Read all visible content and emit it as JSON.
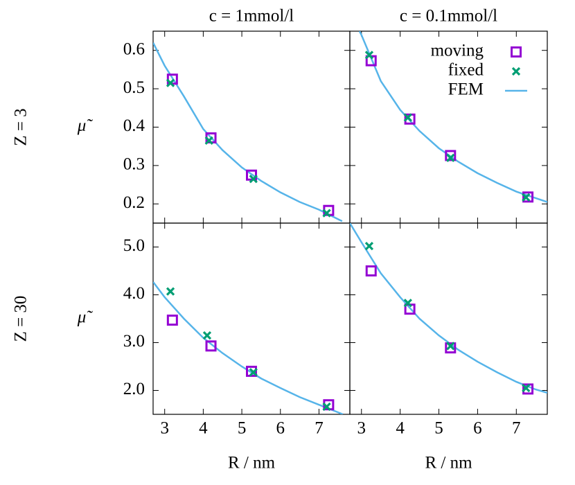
{
  "chart_data": [
    {
      "type": "scatter",
      "title": "c = 1mmol/l",
      "row_label": "Z = 3",
      "ylabel": "μ̃",
      "xlim": [
        2.7,
        7.8
      ],
      "ylim": [
        0.15,
        0.65
      ],
      "yticks": [
        0.2,
        0.3,
        0.4,
        0.5,
        0.6
      ],
      "series": [
        {
          "marker": "square",
          "color": "#9400d3",
          "x": [
            3.2,
            4.2,
            5.25,
            7.25
          ],
          "values": [
            0.525,
            0.372,
            0.275,
            0.183
          ]
        },
        {
          "marker": "cross",
          "color": "#009e73",
          "x": [
            3.15,
            4.15,
            5.3,
            7.2
          ],
          "values": [
            0.515,
            0.365,
            0.265,
            0.176
          ]
        },
        {
          "marker": "line",
          "color": "#56b4e9",
          "x": [
            2.7,
            3,
            3.5,
            4,
            4.5,
            5,
            5.5,
            6,
            6.5,
            7,
            7.5,
            7.6
          ],
          "values": [
            0.62,
            0.56,
            0.48,
            0.395,
            0.34,
            0.295,
            0.26,
            0.23,
            0.205,
            0.185,
            0.16,
            0.155
          ]
        }
      ]
    },
    {
      "type": "scatter",
      "title": "c = 0.1mmol/l",
      "legend": "upper right",
      "xlim": [
        2.7,
        7.8
      ],
      "ylim": [
        0.15,
        0.65
      ],
      "series": [
        {
          "name": "moving",
          "marker": "square",
          "color": "#9400d3",
          "x": [
            3.25,
            4.25,
            5.3,
            7.3
          ],
          "values": [
            0.573,
            0.421,
            0.326,
            0.218
          ]
        },
        {
          "name": "fixed",
          "marker": "cross",
          "color": "#009e73",
          "x": [
            3.2,
            4.2,
            5.3,
            7.25
          ],
          "values": [
            0.588,
            0.425,
            0.32,
            0.217
          ]
        },
        {
          "name": "FEM",
          "marker": "line",
          "color": "#56b4e9",
          "x": [
            2.95,
            3,
            3.5,
            4,
            4.5,
            5,
            5.5,
            6,
            6.5,
            7,
            7.5,
            7.8
          ],
          "values": [
            0.65,
            0.64,
            0.52,
            0.445,
            0.39,
            0.345,
            0.31,
            0.28,
            0.255,
            0.232,
            0.215,
            0.205
          ]
        }
      ]
    },
    {
      "type": "scatter",
      "row_label": "Z = 30",
      "ylabel": "μ̃",
      "xlabel": "R / nm",
      "xlim": [
        2.7,
        7.8
      ],
      "ylim": [
        1.5,
        5.5
      ],
      "xticks": [
        3,
        4,
        5,
        6,
        7
      ],
      "yticks": [
        {
          "value": 2,
          "label": "2.0"
        },
        {
          "value": 3,
          "label": "3.0"
        },
        {
          "value": 4,
          "label": "4.0"
        },
        {
          "value": 5,
          "label": "5.0"
        }
      ],
      "series": [
        {
          "marker": "square",
          "color": "#9400d3",
          "x": [
            3.2,
            4.2,
            5.25,
            7.25
          ],
          "values": [
            3.47,
            2.93,
            2.4,
            1.7
          ]
        },
        {
          "marker": "cross",
          "color": "#009e73",
          "x": [
            3.15,
            4.1,
            5.3,
            7.2
          ],
          "values": [
            4.07,
            3.15,
            2.38,
            1.66
          ]
        },
        {
          "marker": "line",
          "color": "#56b4e9",
          "x": [
            2.7,
            3,
            3.5,
            4,
            4.5,
            5,
            5.5,
            6,
            6.5,
            7,
            7.5,
            7.62
          ],
          "values": [
            4.27,
            3.95,
            3.5,
            3.1,
            2.78,
            2.5,
            2.25,
            2.05,
            1.86,
            1.7,
            1.54,
            1.5
          ]
        }
      ]
    },
    {
      "type": "scatter",
      "xlabel": "R / nm",
      "xlim": [
        2.7,
        7.8
      ],
      "ylim": [
        1.5,
        5.5
      ],
      "xticks": [
        3,
        4,
        5,
        6,
        7
      ],
      "series": [
        {
          "marker": "square",
          "color": "#9400d3",
          "x": [
            3.25,
            4.25,
            5.3,
            7.3
          ],
          "values": [
            4.5,
            3.7,
            2.89,
            2.03
          ]
        },
        {
          "marker": "cross",
          "color": "#009e73",
          "x": [
            3.2,
            4.2,
            5.3,
            7.25
          ],
          "values": [
            5.02,
            3.83,
            2.93,
            2.05
          ]
        },
        {
          "marker": "line",
          "color": "#56b4e9",
          "x": [
            2.7,
            3,
            3.5,
            4,
            4.5,
            5,
            5.5,
            6,
            6.5,
            7,
            7.5,
            7.8
          ],
          "values": [
            5.5,
            5.1,
            4.45,
            3.95,
            3.5,
            3.15,
            2.85,
            2.6,
            2.38,
            2.18,
            2.02,
            1.95
          ]
        }
      ]
    }
  ]
}
